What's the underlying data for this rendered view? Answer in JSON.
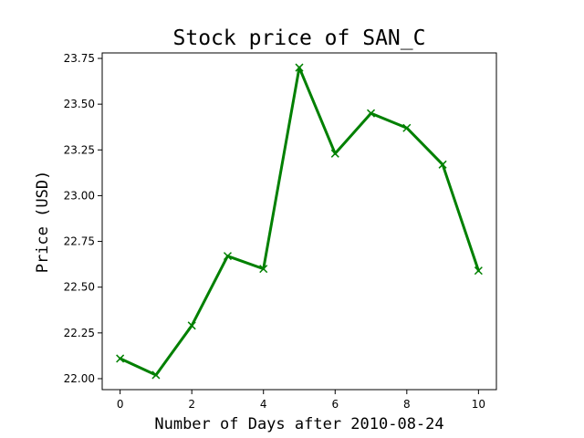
{
  "chart_data": {
    "type": "line",
    "title": "Stock price of SAN_C",
    "xlabel": "Number of Days after 2010-08-24",
    "ylabel": "Price (USD)",
    "x": [
      0,
      1,
      2,
      3,
      4,
      5,
      6,
      7,
      8,
      9,
      10
    ],
    "series": [
      {
        "values": [
          22.11,
          22.02,
          22.29,
          22.67,
          22.6,
          23.7,
          23.23,
          23.45,
          23.37,
          23.17,
          22.59
        ],
        "color": "#008000",
        "marker": "x"
      }
    ],
    "xlim": [
      -0.5,
      10.5
    ],
    "ylim": [
      21.94,
      23.78
    ],
    "xticks": [
      0,
      2,
      4,
      6,
      8,
      10
    ],
    "xtick_labels": [
      "0",
      "2",
      "4",
      "6",
      "8",
      "10"
    ],
    "yticks": [
      22.0,
      22.25,
      22.5,
      22.75,
      23.0,
      23.25,
      23.5,
      23.75
    ],
    "ytick_labels": [
      "22.00",
      "22.25",
      "22.50",
      "22.75",
      "23.00",
      "23.25",
      "23.50",
      "23.75"
    ],
    "grid": false,
    "legend": "none"
  }
}
